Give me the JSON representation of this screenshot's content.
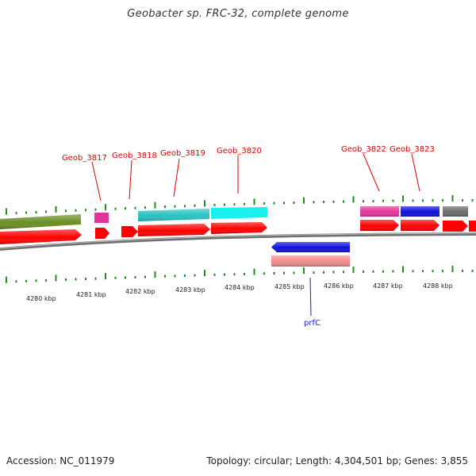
{
  "title": "Geobacter sp. FRC-32, complete genome",
  "footer": {
    "accession": "Accession: NC_011979",
    "summary": "Topology: circular; Length: 4,304,501 bp; Genes: 3,855"
  },
  "colors": {
    "cds_red": "#ff0000",
    "olive": "#6b8e23",
    "magenta": "#e0359a",
    "teal": "#28c2c2",
    "cyan": "#19f0f0",
    "blue": "#1010e0",
    "pink": "#f08a8a",
    "gray": "#6a6a6a",
    "tick": "#228b22",
    "label_red": "#dd0000",
    "label_blue": "#1a1ad0"
  },
  "ticks": [
    {
      "label": "4280 kbp"
    },
    {
      "label": "4281 kbp"
    },
    {
      "label": "4282 kbp"
    },
    {
      "label": "4283 kbp"
    },
    {
      "label": "4284 kbp"
    },
    {
      "label": "4285 kbp"
    },
    {
      "label": "4286 kbp"
    },
    {
      "label": "4287 kbp"
    },
    {
      "label": "4288 kbp"
    }
  ],
  "gene_labels": [
    {
      "name": "Geob_3817"
    },
    {
      "name": "Geob_3818"
    },
    {
      "name": "Geob_3819"
    },
    {
      "name": "Geob_3820"
    },
    {
      "name": "Geob_3822"
    },
    {
      "name": "Geob_3823"
    },
    {
      "name": "prfC"
    }
  ]
}
